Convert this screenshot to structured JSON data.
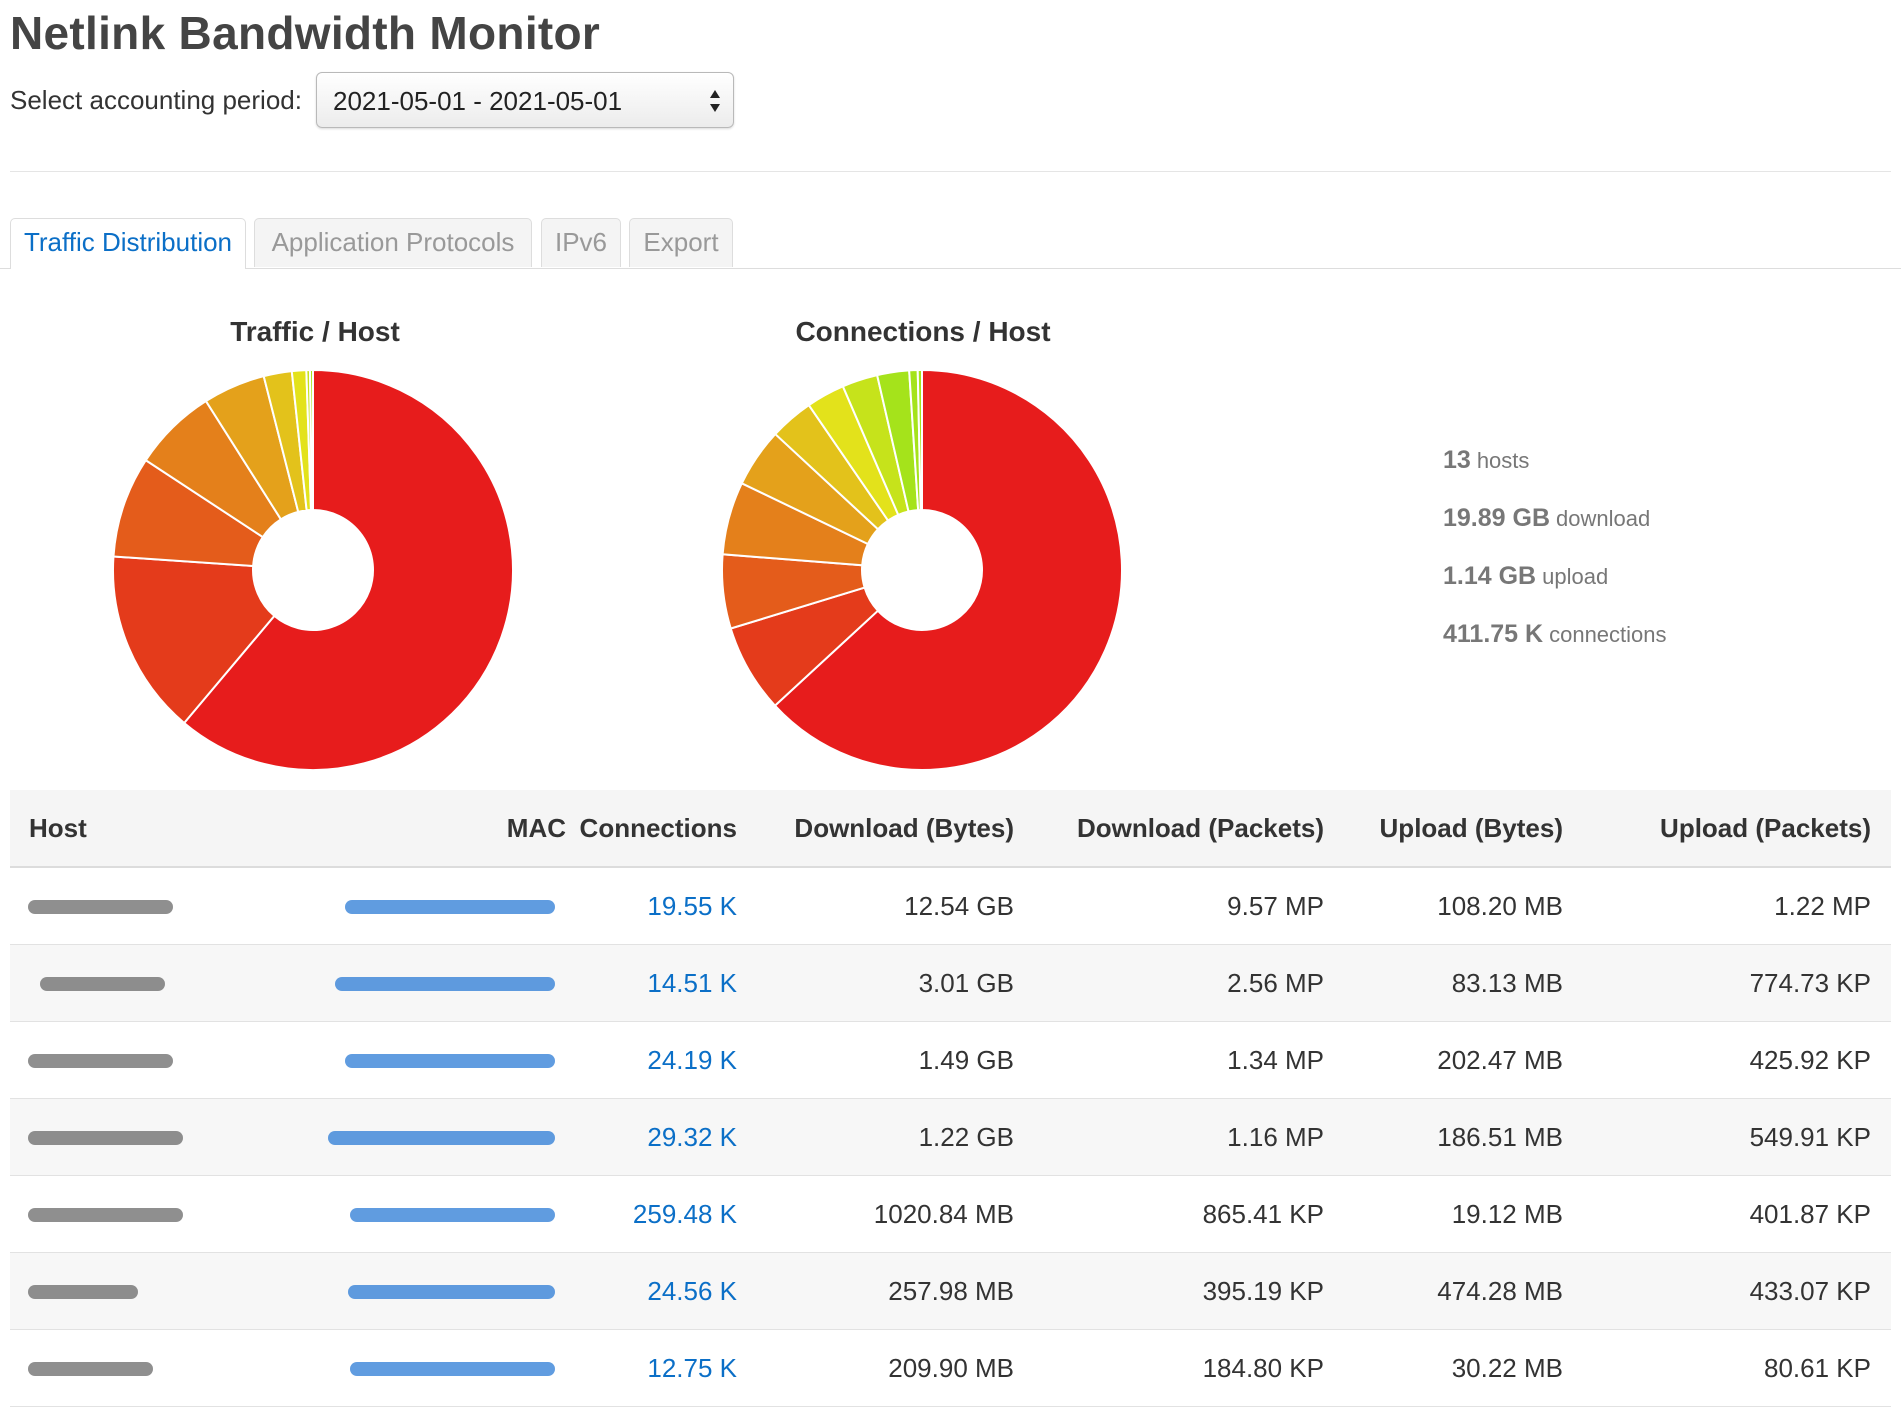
{
  "app": {
    "title": "Netlink Bandwidth Monitor",
    "period_label": "Select accounting period:",
    "period_value": "2021-05-01 - 2021-05-01"
  },
  "tabs": [
    {
      "label": "Traffic Distribution",
      "active": true
    },
    {
      "label": "Application Protocols",
      "active": false
    },
    {
      "label": "IPv6",
      "active": false
    },
    {
      "label": "Export",
      "active": false
    }
  ],
  "colors": {
    "accent": "#0b6fc7",
    "pie_palette": [
      "#e71c1c",
      "#e43b1b",
      "#e45c1b",
      "#e4801b",
      "#e4a11b",
      "#e3c21b",
      "#e3e21b",
      "#c6e31b",
      "#a5e31b"
    ]
  },
  "chart_data": [
    {
      "type": "pie",
      "title": "Traffic / Host",
      "values": [
        12.65,
        3.09,
        1.69,
        1.4,
        1.04,
        0.47,
        0.24,
        0.06,
        0.05
      ]
    },
    {
      "type": "pie",
      "title": "Connections / Host",
      "values": [
        259.48,
        29.32,
        24.56,
        24.19,
        19.55,
        14.51,
        12.75,
        11.8,
        10.6,
        2.8,
        1.4
      ]
    }
  ],
  "stats": [
    {
      "value": "13",
      "label": "hosts"
    },
    {
      "value": "19.89 GB",
      "label": "download"
    },
    {
      "value": "1.14 GB",
      "label": "upload"
    },
    {
      "value": "411.75 K",
      "label": "connections"
    }
  ],
  "table": {
    "headers": {
      "host": "Host",
      "mac": "MAC",
      "connections": "Connections",
      "download_bytes": "Download (Bytes)",
      "download_packets": "Download (Packets)",
      "upload_bytes": "Upload (Bytes)",
      "upload_packets": "Upload (Packets)"
    },
    "rows": [
      {
        "connections": "19.55 K",
        "download_bytes": "12.54 GB",
        "download_packets": "9.57 MP",
        "upload_bytes": "108.20 MB",
        "upload_packets": "1.22 MP"
      },
      {
        "connections": "14.51 K",
        "download_bytes": "3.01 GB",
        "download_packets": "2.56 MP",
        "upload_bytes": "83.13 MB",
        "upload_packets": "774.73 KP"
      },
      {
        "connections": "24.19 K",
        "download_bytes": "1.49 GB",
        "download_packets": "1.34 MP",
        "upload_bytes": "202.47 MB",
        "upload_packets": "425.92 KP"
      },
      {
        "connections": "29.32 K",
        "download_bytes": "1.22 GB",
        "download_packets": "1.16 MP",
        "upload_bytes": "186.51 MB",
        "upload_packets": "549.91 KP"
      },
      {
        "connections": "259.48 K",
        "download_bytes": "1020.84 MB",
        "download_packets": "865.41 KP",
        "upload_bytes": "19.12 MB",
        "upload_packets": "401.87 KP"
      },
      {
        "connections": "24.56 K",
        "download_bytes": "257.98 MB",
        "download_packets": "395.19 KP",
        "upload_bytes": "474.28 MB",
        "upload_packets": "433.07 KP"
      },
      {
        "connections": "12.75 K",
        "download_bytes": "209.90 MB",
        "download_packets": "184.80 KP",
        "upload_bytes": "30.22 MB",
        "upload_packets": "80.61 KP"
      }
    ]
  }
}
